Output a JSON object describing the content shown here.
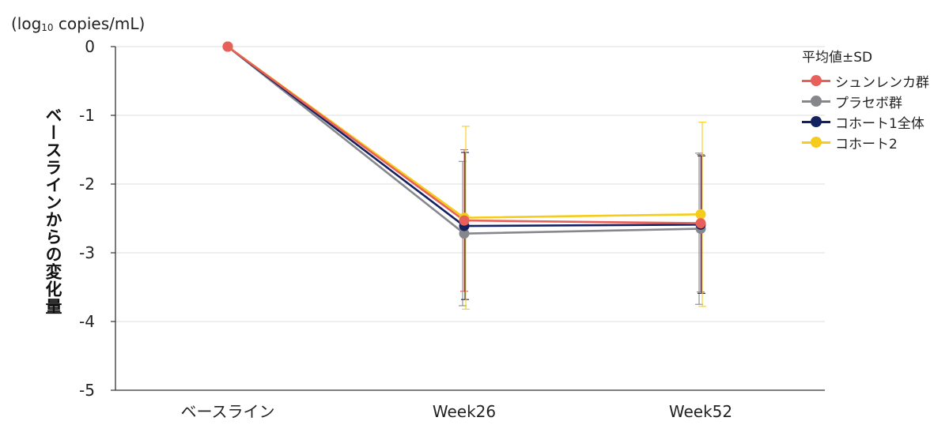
{
  "chart_data": {
    "type": "line",
    "unit_prefix": "(log",
    "unit_sub": "10",
    "unit_suffix": " copies/mL)",
    "ylabel": "ベースラインからの変化量",
    "categories": [
      "ベースライン",
      "Week26",
      "Week52"
    ],
    "ylim": [
      -5,
      0
    ],
    "yticks": [
      0,
      -1,
      -2,
      -3,
      -4,
      -5
    ],
    "grid": true,
    "legend_title": "平均値±SD",
    "legend_position": "right",
    "series": [
      {
        "name": "シュンレンカ群",
        "color": "#e8605a",
        "values": [
          0,
          -2.53,
          -2.57
        ],
        "sd": [
          0,
          1.03,
          1.0
        ]
      },
      {
        "name": "プラセボ群",
        "color": "#85878c",
        "values": [
          0,
          -2.72,
          -2.65
        ],
        "sd": [
          0,
          1.05,
          1.1
        ]
      },
      {
        "name": "コホート1全体",
        "color": "#14215f",
        "values": [
          0,
          -2.61,
          -2.59
        ],
        "sd": [
          0,
          1.07,
          1.0
        ]
      },
      {
        "name": "コホート2",
        "color": "#f6cc1a",
        "values": [
          0,
          -2.49,
          -2.44
        ],
        "sd": [
          0,
          1.33,
          1.34
        ]
      }
    ]
  }
}
